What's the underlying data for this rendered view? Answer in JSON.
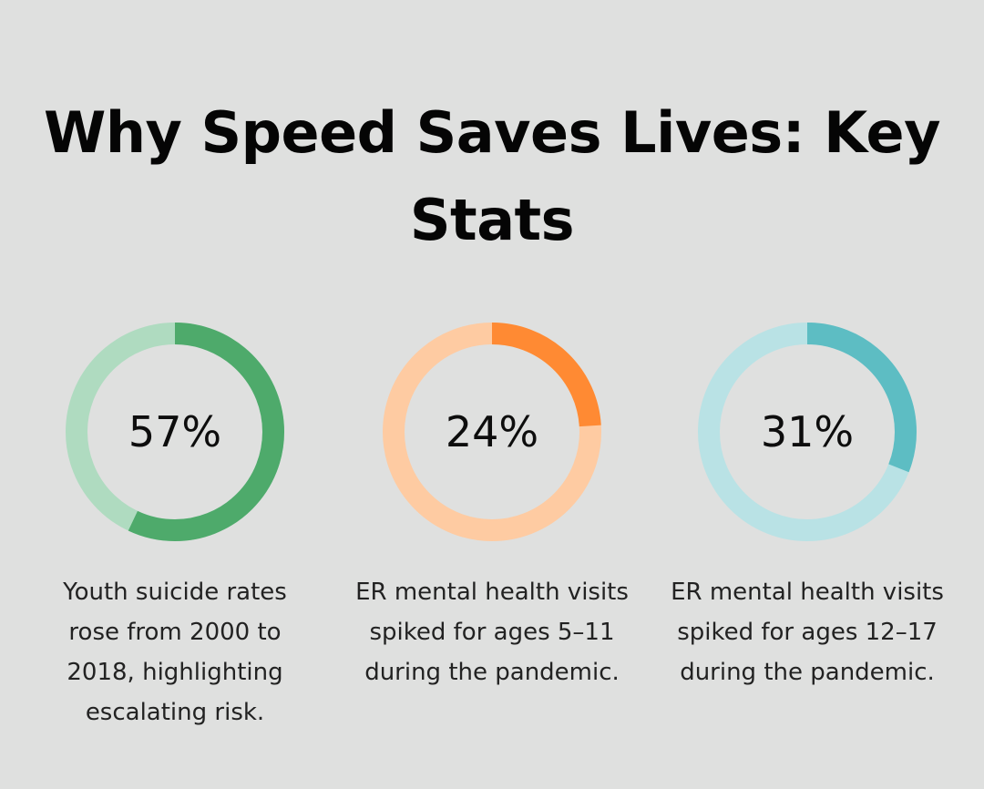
{
  "title": "Why Speed Saves Lives: Key Stats",
  "chart_data": {
    "type": "pie",
    "variant": "donut",
    "items": [
      {
        "label": "57%",
        "value": 57,
        "caption": "Youth suicide rates rose from 2000 to 2018, highlighting escalating risk.",
        "color": "#4eaa6b",
        "track_color": "#afdbc0"
      },
      {
        "label": "24%",
        "value": 24,
        "caption": "ER mental health visits spiked for ages 5–11 during the pandemic.",
        "color": "#ff8a33",
        "track_color": "#fecba2"
      },
      {
        "label": "31%",
        "value": 31,
        "caption": "ER mental health visits spiked for ages 12–17 during the pandemic.",
        "color": "#5dbdc3",
        "track_color": "#b9e2e5"
      }
    ]
  }
}
